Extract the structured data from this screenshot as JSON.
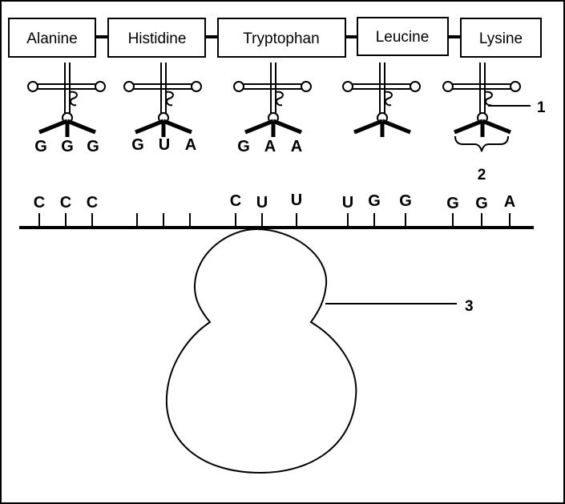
{
  "amino_acids": [
    {
      "name": "Alanine",
      "anticodon": [
        "G",
        "G",
        "G"
      ]
    },
    {
      "name": "Histidine",
      "anticodon": [
        "G",
        "U",
        "A"
      ]
    },
    {
      "name": "Tryptophan",
      "anticodon": [
        "G",
        "A",
        "A"
      ]
    },
    {
      "name": "Leucine",
      "anticodon": []
    },
    {
      "name": "Lysine",
      "anticodon": []
    }
  ],
  "mrna_bases": [
    "C",
    "C",
    "C",
    "",
    "",
    "",
    "C",
    "U",
    "U",
    "U",
    "G",
    "G",
    "G",
    "G",
    "A"
  ],
  "labels": {
    "trna": "1",
    "anticodon": "2",
    "ribosome": "3"
  }
}
